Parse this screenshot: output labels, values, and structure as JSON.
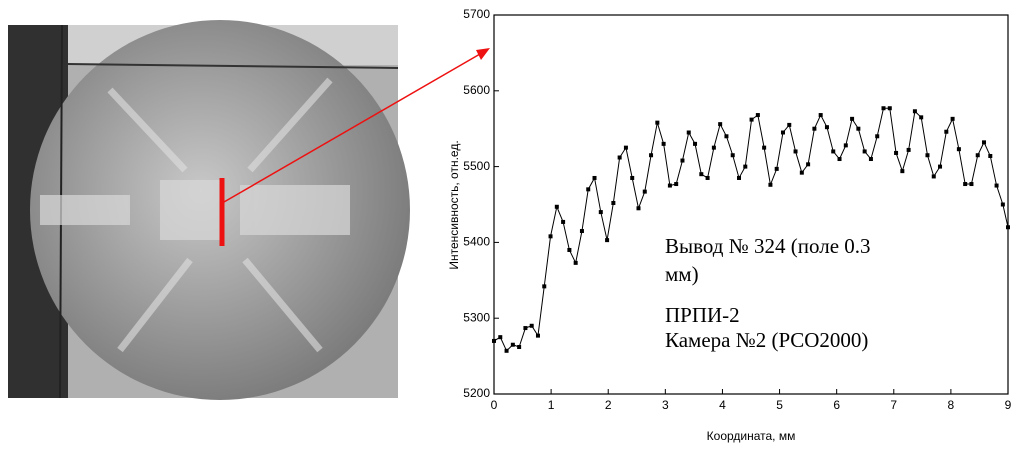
{
  "chart_data": {
    "type": "line",
    "xlabel": "Координата, мм",
    "ylabel": "Интенсивность, отн.ед.",
    "annotation": [
      "Вывод № 324 (поле 0.3",
      "мм)",
      "ПРПИ-2",
      "Камера №2 (PCO2000)"
    ],
    "x": [
      0,
      0.11,
      0.22,
      0.33,
      0.44,
      0.55,
      0.66,
      0.77,
      0.88,
      0.99,
      1.1,
      1.21,
      1.32,
      1.43,
      1.54,
      1.65,
      1.76,
      1.87,
      1.98,
      2.09,
      2.2,
      2.31,
      2.42,
      2.53,
      2.64,
      2.75,
      2.86,
      2.97,
      3.08,
      3.19,
      3.3,
      3.41,
      3.52,
      3.63,
      3.74,
      3.85,
      3.96,
      4.07,
      4.18,
      4.29,
      4.4,
      4.51,
      4.62,
      4.73,
      4.84,
      4.95,
      5.06,
      5.17,
      5.28,
      5.39,
      5.5,
      5.61,
      5.72,
      5.83,
      5.94,
      6.05,
      6.16,
      6.27,
      6.38,
      6.49,
      6.6,
      6.71,
      6.82,
      6.93,
      7.04,
      7.15,
      7.26,
      7.37,
      7.48,
      7.59,
      7.7,
      7.81,
      7.92,
      8.03,
      8.14,
      8.25,
      8.36,
      8.47,
      8.58,
      8.69,
      8.8,
      8.91,
      9.0
    ],
    "series": [
      {
        "color": "#000000",
        "values": [
          5270,
          5275,
          5257,
          5265,
          5262,
          5287,
          5290,
          5277,
          5342,
          5408,
          5447,
          5427,
          5390,
          5373,
          5415,
          5470,
          5485,
          5440,
          5403,
          5452,
          5512,
          5525,
          5485,
          5445,
          5467,
          5515,
          5558,
          5530,
          5475,
          5477,
          5508,
          5545,
          5530,
          5490,
          5485,
          5525,
          5556,
          5540,
          5515,
          5485,
          5500,
          5562,
          5568,
          5525,
          5476,
          5497,
          5545,
          5555,
          5520,
          5492,
          5503,
          5550,
          5568,
          5552,
          5520,
          5510,
          5528,
          5563,
          5550,
          5520,
          5510,
          5540,
          5577,
          5577,
          5518,
          5494,
          5522,
          5573,
          5565,
          5515,
          5487,
          5500,
          5546,
          5563,
          5523,
          5477,
          5477,
          5515,
          5532,
          5514,
          5475,
          5450,
          5420
        ]
      }
    ],
    "xlim": [
      0,
      9
    ],
    "xticks": [
      0,
      1,
      2,
      3,
      4,
      5,
      6,
      7,
      8,
      9
    ],
    "ylim": [
      5200,
      5700
    ],
    "yticks": [
      5200,
      5300,
      5400,
      5500,
      5600,
      5700
    ]
  }
}
